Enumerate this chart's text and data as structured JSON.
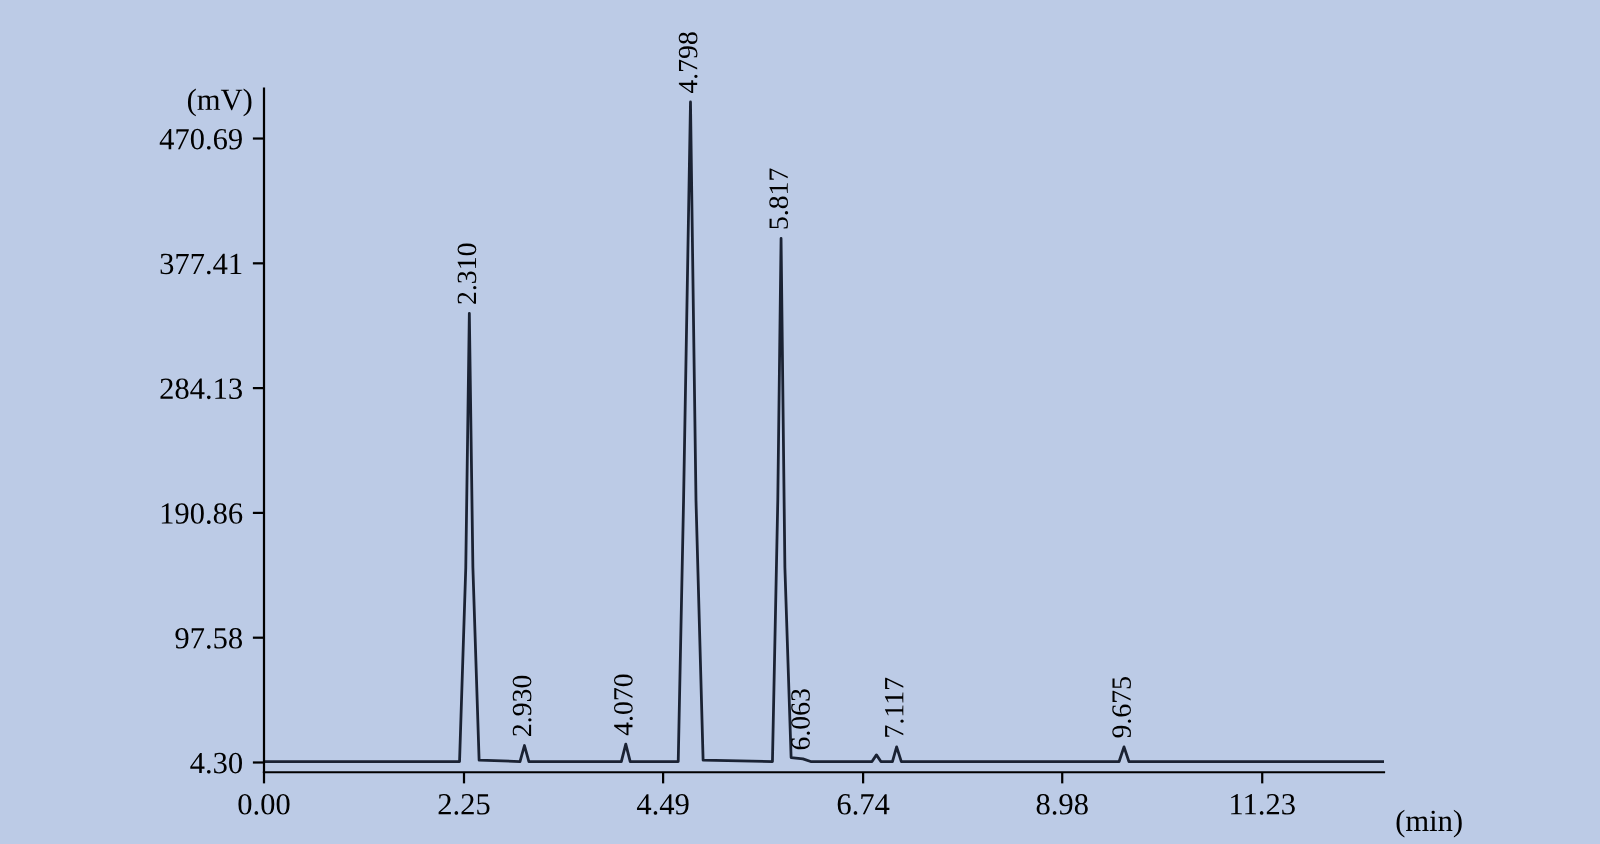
{
  "chart_data": {
    "type": "line",
    "xlabel": "(min)",
    "ylabel": "(mV)",
    "x": [
      0,
      2.2,
      2.27,
      2.31,
      2.35,
      2.42,
      2.88,
      2.93,
      2.98,
      4.02,
      4.07,
      4.12,
      4.66,
      4.72,
      4.798,
      4.86,
      4.94,
      5.72,
      5.78,
      5.817,
      5.86,
      5.93,
      6.063,
      6.15,
      6.84,
      6.89,
      6.94,
      7.07,
      7.117,
      7.17,
      9.62,
      9.675,
      9.73,
      12.6
    ],
    "series": [
      {
        "color": "#1a2233",
        "values": [
          5,
          5,
          150,
          340,
          150,
          6,
          5,
          17,
          5,
          5,
          18,
          5,
          5,
          200,
          498,
          200,
          6,
          5,
          200,
          396,
          150,
          8,
          7,
          5,
          5,
          10,
          5,
          5,
          16,
          5,
          5,
          16,
          5,
          5
        ]
      }
    ],
    "annotations": [
      {
        "text": "2.310",
        "x": 2.31,
        "y": 340
      },
      {
        "text": "2.930",
        "x": 2.93,
        "y": 17
      },
      {
        "text": "4.070",
        "x": 4.07,
        "y": 18
      },
      {
        "text": "4.798",
        "x": 4.798,
        "y": 498
      },
      {
        "text": "5.817",
        "x": 5.817,
        "y": 396
      },
      {
        "text": "6.063",
        "x": 6.063,
        "y": 7
      },
      {
        "text": "7.117",
        "x": 7.117,
        "y": 16
      },
      {
        "text": "9.675",
        "x": 9.675,
        "y": 16
      }
    ],
    "xlim": [
      0,
      12.6
    ],
    "ylim": [
      -3,
      508
    ],
    "xticks": [
      {
        "value": 0,
        "label": "0.00"
      },
      {
        "value": 2.25,
        "label": "2.25"
      },
      {
        "value": 4.49,
        "label": "4.49"
      },
      {
        "value": 6.74,
        "label": "6.74"
      },
      {
        "value": 8.98,
        "label": "8.98"
      },
      {
        "value": 11.23,
        "label": "11.23"
      }
    ],
    "yticks": [
      {
        "value": 4.3,
        "label": "4.30"
      },
      {
        "value": 97.58,
        "label": "97.58"
      },
      {
        "value": 190.86,
        "label": "190.86"
      },
      {
        "value": 284.13,
        "label": "284.13"
      },
      {
        "value": 377.41,
        "label": "377.41"
      },
      {
        "value": 470.69,
        "label": "470.69"
      }
    ],
    "grid": false,
    "legend": false,
    "marker": "none",
    "line_style": "solid"
  }
}
